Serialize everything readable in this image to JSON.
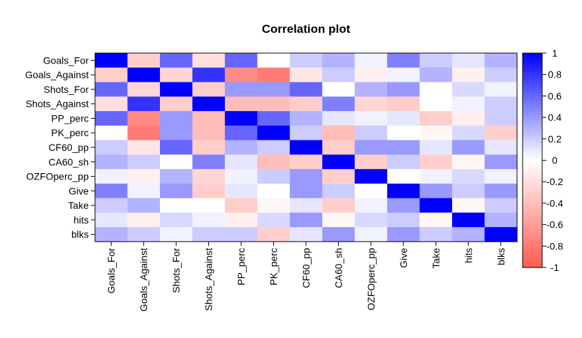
{
  "chart_data": {
    "type": "heatmap",
    "title": "Correlation plot",
    "row_labels": [
      "Goals_For",
      "Goals_Against",
      "Shots_For",
      "Shots_Against",
      "PP_perc",
      "PK_perc",
      "CF60_pp",
      "CA60_sh",
      "OZFOperc_pp",
      "Give",
      "Take",
      "hits",
      "blks"
    ],
    "col_labels": [
      "Goals_For",
      "Goals_Against",
      "Shots_For",
      "Shots_Against",
      "PP_perc",
      "PK_perc",
      "CF60_pp",
      "CA60_sh",
      "OZFOperc_pp",
      "Give",
      "Take",
      "hits",
      "blks"
    ],
    "values": [
      [
        1.0,
        -0.3,
        0.6,
        -0.2,
        0.6,
        0.0,
        0.2,
        0.3,
        0.05,
        0.5,
        0.2,
        0.1,
        0.3
      ],
      [
        -0.3,
        1.0,
        -0.25,
        0.8,
        -0.7,
        -0.8,
        -0.15,
        0.2,
        -0.1,
        0.05,
        0.3,
        -0.1,
        0.2
      ],
      [
        0.6,
        -0.25,
        1.0,
        -0.3,
        0.4,
        0.4,
        0.6,
        0.0,
        0.3,
        0.4,
        0.0,
        0.15,
        0.05
      ],
      [
        -0.2,
        0.8,
        -0.3,
        1.0,
        -0.4,
        -0.4,
        -0.3,
        0.5,
        -0.25,
        -0.3,
        0.0,
        0.05,
        0.2
      ],
      [
        0.6,
        -0.7,
        0.4,
        -0.4,
        1.0,
        0.6,
        0.3,
        0.1,
        0.05,
        0.1,
        -0.3,
        -0.1,
        0.2
      ],
      [
        0.0,
        -0.8,
        0.4,
        -0.4,
        0.6,
        1.0,
        0.2,
        -0.4,
        0.2,
        0.0,
        -0.05,
        0.15,
        -0.3
      ],
      [
        0.2,
        -0.15,
        0.6,
        -0.3,
        0.3,
        0.2,
        1.0,
        -0.3,
        0.4,
        0.4,
        0.1,
        0.4,
        0.1
      ],
      [
        0.3,
        0.2,
        0.0,
        0.5,
        0.1,
        -0.4,
        -0.3,
        1.0,
        -0.3,
        0.2,
        -0.3,
        -0.05,
        0.4
      ],
      [
        0.05,
        -0.1,
        0.3,
        -0.25,
        0.05,
        0.2,
        0.4,
        -0.3,
        1.0,
        0.0,
        0.05,
        0.15,
        0.05
      ],
      [
        0.5,
        0.05,
        0.4,
        -0.3,
        0.1,
        0.0,
        0.4,
        0.2,
        0.0,
        1.0,
        0.4,
        0.2,
        0.4
      ],
      [
        0.2,
        0.3,
        0.0,
        0.0,
        -0.3,
        -0.05,
        0.1,
        -0.3,
        0.05,
        0.4,
        1.0,
        -0.05,
        0.2
      ],
      [
        0.1,
        -0.1,
        0.15,
        0.05,
        -0.1,
        0.15,
        0.4,
        -0.05,
        0.15,
        0.2,
        -0.05,
        1.0,
        0.3
      ],
      [
        0.3,
        0.2,
        0.05,
        0.2,
        0.2,
        -0.3,
        0.1,
        0.4,
        0.05,
        0.4,
        0.2,
        0.3,
        1.0
      ]
    ],
    "scale_ticks": [
      1,
      0.8,
      0.6,
      0.4,
      0.2,
      0,
      -0.2,
      -0.4,
      -0.6,
      -0.8,
      -1
    ],
    "scale_tick_labels": [
      "1",
      "0.8",
      "0.6",
      "0.4",
      "0.2",
      "0",
      "-0.2",
      "-0.4",
      "-0.6",
      "-0.8",
      "-1"
    ],
    "scale_range": [
      -1,
      1
    ],
    "colors": {
      "negative": "#FF5A50",
      "zero": "#FFFFFF",
      "positive": "#0000FF"
    },
    "legend_placement": "right"
  }
}
